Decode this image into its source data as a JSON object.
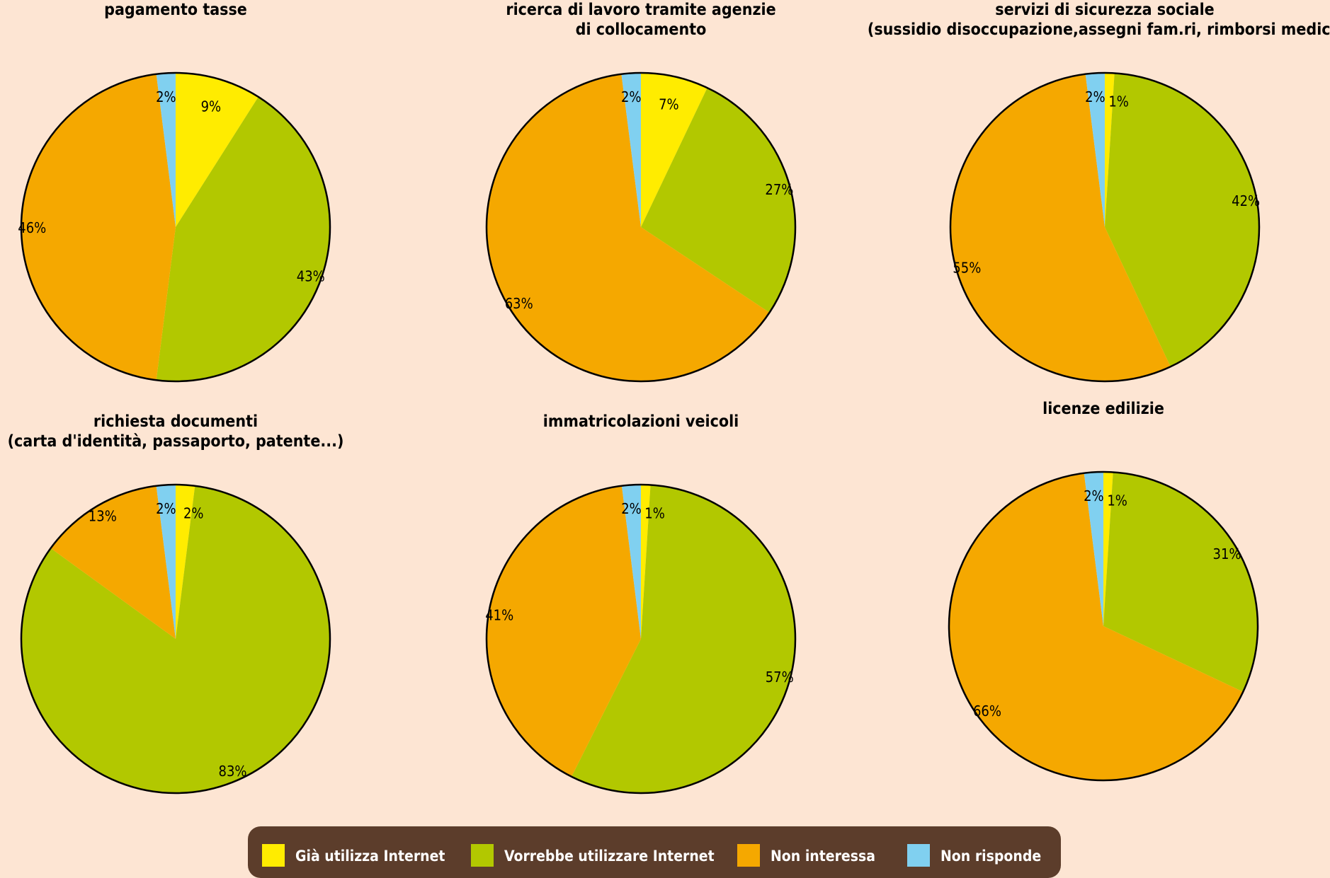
{
  "colors": {
    "background": "#fde5d3",
    "gia_utilizza": "#ffec00",
    "vorrebbe_utilizzare": "#b2c800",
    "non_interessa": "#f5a800",
    "non_risponde": "#80d0f0",
    "legend_bg": "#5c3d2b",
    "outline": "#000000"
  },
  "legend": {
    "items": [
      {
        "key": "gia_utilizza",
        "label": "Già utilizza Internet"
      },
      {
        "key": "vorrebbe_utilizzare",
        "label": "Vorrebbe utilizzare Internet"
      },
      {
        "key": "non_interessa",
        "label": "Non interessa"
      },
      {
        "key": "non_risponde",
        "label": "Non risponde"
      }
    ]
  },
  "chart_data": [
    {
      "type": "pie",
      "title": [
        "pagamento tasse"
      ],
      "slices": [
        {
          "name": "Già utilizza Internet",
          "value": 9,
          "label": "9%"
        },
        {
          "name": "Vorrebbe utilizzare Internet",
          "value": 43,
          "label": "43%"
        },
        {
          "name": "Non interessa",
          "value": 46,
          "label": "46%"
        },
        {
          "name": "Non risponde",
          "value": 2,
          "label": "2%"
        }
      ]
    },
    {
      "type": "pie",
      "title": [
        "ricerca di lavoro tramite agenzie",
        "di collocamento"
      ],
      "slices": [
        {
          "name": "Già utilizza Internet",
          "value": 7,
          "label": "7%"
        },
        {
          "name": "Vorrebbe utilizzare Internet",
          "value": 27,
          "label": "27%"
        },
        {
          "name": "Non interessa",
          "value": 63,
          "label": "63%"
        },
        {
          "name": "Non risponde",
          "value": 2,
          "label": "2%"
        }
      ]
    },
    {
      "type": "pie",
      "title": [
        "servizi di sicurezza sociale",
        "(sussidio disoccupazione,assegni fam.ri, rimborsi medici)"
      ],
      "slices": [
        {
          "name": "Già utilizza Internet",
          "value": 1,
          "label": "1%"
        },
        {
          "name": "Vorrebbe utilizzare Internet",
          "value": 42,
          "label": "42%"
        },
        {
          "name": "Non interessa",
          "value": 55,
          "label": "55%"
        },
        {
          "name": "Non risponde",
          "value": 2,
          "label": "2%"
        }
      ]
    },
    {
      "type": "pie",
      "title": [
        "richiesta documenti",
        "(carta d'identità, passaporto, patente...)"
      ],
      "slices": [
        {
          "name": "Già utilizza Internet",
          "value": 2,
          "label": "2%"
        },
        {
          "name": "Vorrebbe utilizzare Internet",
          "value": 83,
          "label": "83%"
        },
        {
          "name": "Non interessa",
          "value": 13,
          "label": "13%"
        },
        {
          "name": "Non risponde",
          "value": 2,
          "label": "2%"
        }
      ]
    },
    {
      "type": "pie",
      "title": [
        "immatricolazioni veicoli"
      ],
      "slices": [
        {
          "name": "Già utilizza Internet",
          "value": 1,
          "label": "1%"
        },
        {
          "name": "Vorrebbe utilizzare Internet",
          "value": 57,
          "label": "57%"
        },
        {
          "name": "Non interessa",
          "value": 41,
          "label": "41%"
        },
        {
          "name": "Non risponde",
          "value": 2,
          "label": "2%"
        }
      ]
    },
    {
      "type": "pie",
      "title": [
        "licenze edilizie"
      ],
      "slices": [
        {
          "name": "Già utilizza Internet",
          "value": 1,
          "label": "1%"
        },
        {
          "name": "Vorrebbe utilizzare Internet",
          "value": 31,
          "label": "31%"
        },
        {
          "name": "Non interessa",
          "value": 66,
          "label": "66%"
        },
        {
          "name": "Non risponde",
          "value": 2,
          "label": "2%"
        }
      ]
    }
  ]
}
